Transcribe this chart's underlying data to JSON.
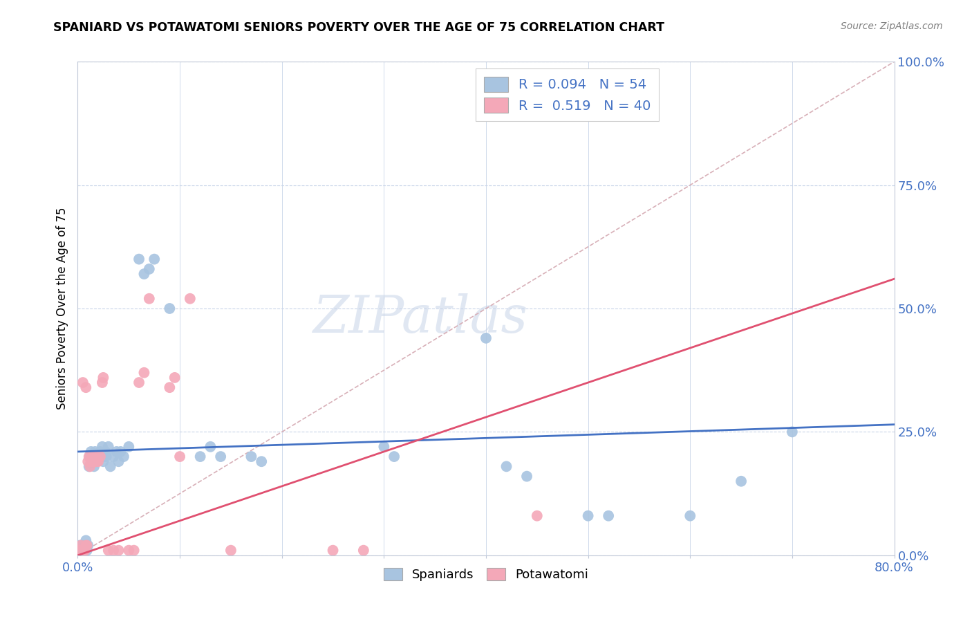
{
  "title": "SPANIARD VS POTAWATOMI SENIORS POVERTY OVER THE AGE OF 75 CORRELATION CHART",
  "source": "Source: ZipAtlas.com",
  "ylabel": "Seniors Poverty Over the Age of 75",
  "ylabel_right_ticks": [
    "0.0%",
    "25.0%",
    "50.0%",
    "75.0%",
    "100.0%"
  ],
  "ylabel_right_vals": [
    0.0,
    0.25,
    0.5,
    0.75,
    1.0
  ],
  "xlim": [
    0.0,
    0.8
  ],
  "ylim": [
    0.0,
    1.0
  ],
  "watermark": "ZIPatlas",
  "legend_entry1": "R = 0.094   N = 54",
  "legend_entry2": "R =  0.519   N = 40",
  "legend_label1": "Spaniards",
  "legend_label2": "Potawatomi",
  "spaniard_color": "#a8c4e0",
  "potawatomi_color": "#f4a8b8",
  "spaniard_line_color": "#4472c4",
  "potawatomi_line_color": "#e05070",
  "diagonal_color": "#d8b0b8",
  "spaniard_line": [
    0.0,
    0.21,
    0.8,
    0.265
  ],
  "potawatomi_line": [
    0.0,
    0.0,
    0.8,
    0.56
  ],
  "spaniard_points": [
    [
      0.001,
      0.01
    ],
    [
      0.002,
      0.02
    ],
    [
      0.003,
      0.01
    ],
    [
      0.004,
      0.02
    ],
    [
      0.005,
      0.01
    ],
    [
      0.006,
      0.01
    ],
    [
      0.007,
      0.02
    ],
    [
      0.008,
      0.03
    ],
    [
      0.009,
      0.01
    ],
    [
      0.01,
      0.02
    ],
    [
      0.011,
      0.18
    ],
    [
      0.012,
      0.2
    ],
    [
      0.013,
      0.21
    ],
    [
      0.014,
      0.19
    ],
    [
      0.015,
      0.2
    ],
    [
      0.016,
      0.18
    ],
    [
      0.017,
      0.21
    ],
    [
      0.018,
      0.2
    ],
    [
      0.019,
      0.19
    ],
    [
      0.02,
      0.2
    ],
    [
      0.022,
      0.21
    ],
    [
      0.024,
      0.22
    ],
    [
      0.025,
      0.19
    ],
    [
      0.026,
      0.2
    ],
    [
      0.027,
      0.21
    ],
    [
      0.028,
      0.2
    ],
    [
      0.03,
      0.22
    ],
    [
      0.032,
      0.18
    ],
    [
      0.035,
      0.2
    ],
    [
      0.038,
      0.21
    ],
    [
      0.04,
      0.19
    ],
    [
      0.042,
      0.21
    ],
    [
      0.045,
      0.2
    ],
    [
      0.05,
      0.22
    ],
    [
      0.06,
      0.6
    ],
    [
      0.065,
      0.57
    ],
    [
      0.07,
      0.58
    ],
    [
      0.075,
      0.6
    ],
    [
      0.09,
      0.5
    ],
    [
      0.12,
      0.2
    ],
    [
      0.13,
      0.22
    ],
    [
      0.14,
      0.2
    ],
    [
      0.17,
      0.2
    ],
    [
      0.18,
      0.19
    ],
    [
      0.3,
      0.22
    ],
    [
      0.31,
      0.2
    ],
    [
      0.4,
      0.44
    ],
    [
      0.42,
      0.18
    ],
    [
      0.44,
      0.16
    ],
    [
      0.5,
      0.08
    ],
    [
      0.52,
      0.08
    ],
    [
      0.6,
      0.08
    ],
    [
      0.65,
      0.15
    ],
    [
      0.7,
      0.25
    ]
  ],
  "potawatomi_points": [
    [
      0.001,
      0.01
    ],
    [
      0.002,
      0.01
    ],
    [
      0.003,
      0.02
    ],
    [
      0.004,
      0.01
    ],
    [
      0.005,
      0.01
    ],
    [
      0.006,
      0.01
    ],
    [
      0.007,
      0.01
    ],
    [
      0.008,
      0.02
    ],
    [
      0.009,
      0.02
    ],
    [
      0.01,
      0.19
    ],
    [
      0.011,
      0.2
    ],
    [
      0.012,
      0.18
    ],
    [
      0.013,
      0.19
    ],
    [
      0.014,
      0.2
    ],
    [
      0.015,
      0.19
    ],
    [
      0.016,
      0.2
    ],
    [
      0.017,
      0.2
    ],
    [
      0.018,
      0.19
    ],
    [
      0.02,
      0.19
    ],
    [
      0.022,
      0.2
    ],
    [
      0.024,
      0.35
    ],
    [
      0.025,
      0.36
    ],
    [
      0.005,
      0.35
    ],
    [
      0.008,
      0.34
    ],
    [
      0.03,
      0.01
    ],
    [
      0.035,
      0.01
    ],
    [
      0.04,
      0.01
    ],
    [
      0.05,
      0.01
    ],
    [
      0.055,
      0.01
    ],
    [
      0.06,
      0.35
    ],
    [
      0.065,
      0.37
    ],
    [
      0.07,
      0.52
    ],
    [
      0.09,
      0.34
    ],
    [
      0.095,
      0.36
    ],
    [
      0.1,
      0.2
    ],
    [
      0.11,
      0.52
    ],
    [
      0.15,
      0.01
    ],
    [
      0.25,
      0.01
    ],
    [
      0.28,
      0.01
    ],
    [
      0.45,
      0.08
    ]
  ]
}
